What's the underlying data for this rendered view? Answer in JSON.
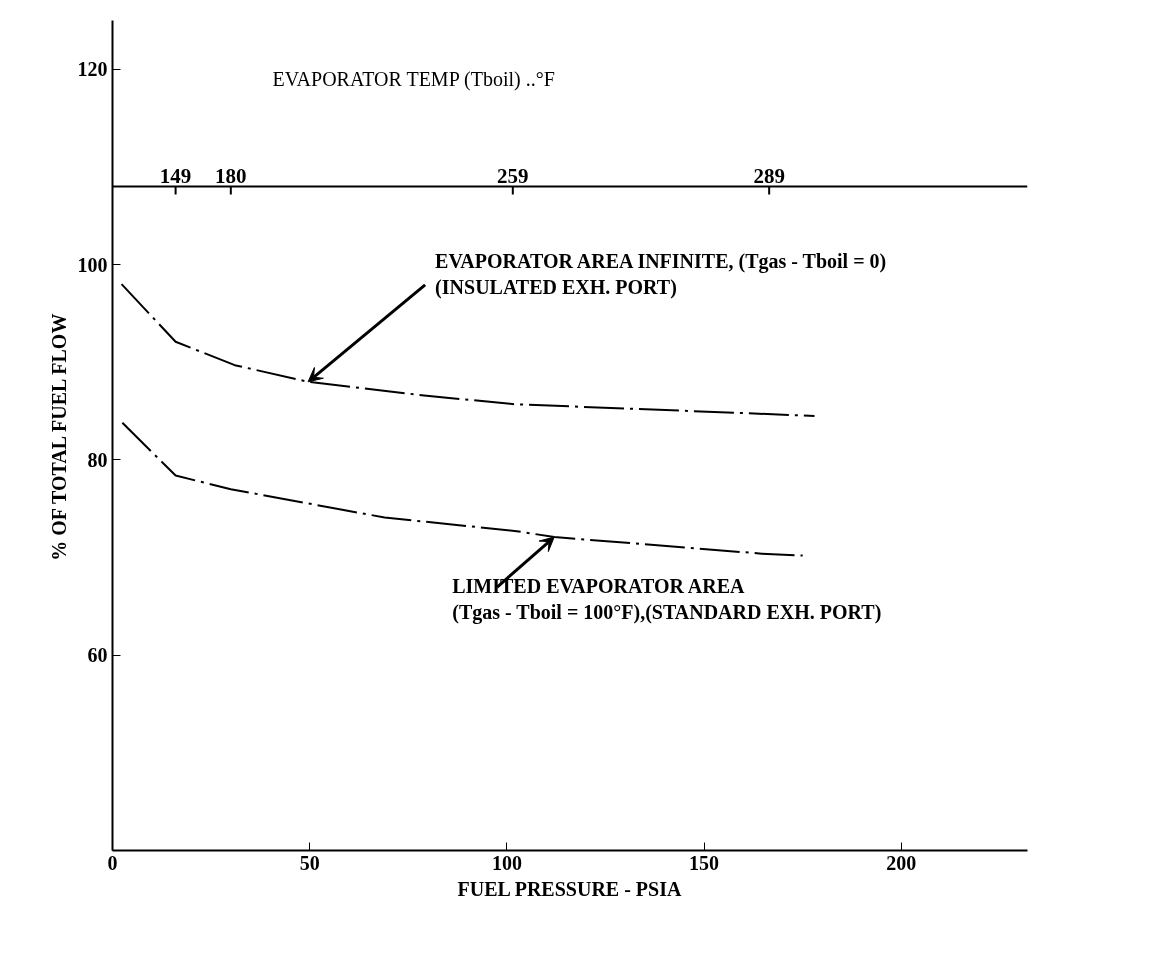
{
  "chart_data": {
    "type": "line",
    "xlabel": "FUEL PRESSURE - PSIA",
    "ylabel": "% OF TOTAL FUEL FLOW",
    "xlim": [
      0,
      232
    ],
    "xticks": [
      0,
      50,
      100,
      150,
      200
    ],
    "ylim": [
      40,
      125
    ],
    "yticks": [
      60,
      80,
      100,
      120
    ],
    "line_style": "dashed",
    "grid": false,
    "series": [
      {
        "color": "#000000",
        "x": [
          2.3,
          16,
          31,
          49.6,
          79,
          102,
          166,
          178
        ],
        "values": [
          98.0,
          92.1,
          89.7,
          88.0,
          86.6,
          85.7,
          84.7,
          84.5
        ]
      },
      {
        "color": "#000000",
        "x": [
          2.5,
          16,
          30,
          69,
          102.5,
          112,
          164.6,
          175
        ],
        "values": [
          83.8,
          78.4,
          77.0,
          74.1,
          72.7,
          72.1,
          70.4,
          70.2
        ]
      }
    ],
    "ref_lines": [
      {
        "axis": "y",
        "value": 108
      }
    ],
    "annotations": [
      "EVAPORATOR TEMP (Tboil) ..°F",
      {
        "text": "149",
        "x": 16,
        "y": 108
      },
      {
        "text": "180",
        "x": 30,
        "y": 108
      },
      {
        "text": "259",
        "x": 101.5,
        "y": 108
      },
      {
        "text": "289",
        "x": 166.5,
        "y": 108
      },
      {
        "text": "EVAPORATOR AREA INFINITE, (Tgas - Tboil = 0)\n(INSULATED EXH. PORT)",
        "x": 49.6,
        "y": 88.0
      },
      {
        "text": "LIMITED EVAPORATOR AREA\n(Tgas - Tboil = 100°F),(STANDARD EXH. PORT)",
        "x": 112,
        "y": 72.1
      }
    ]
  }
}
